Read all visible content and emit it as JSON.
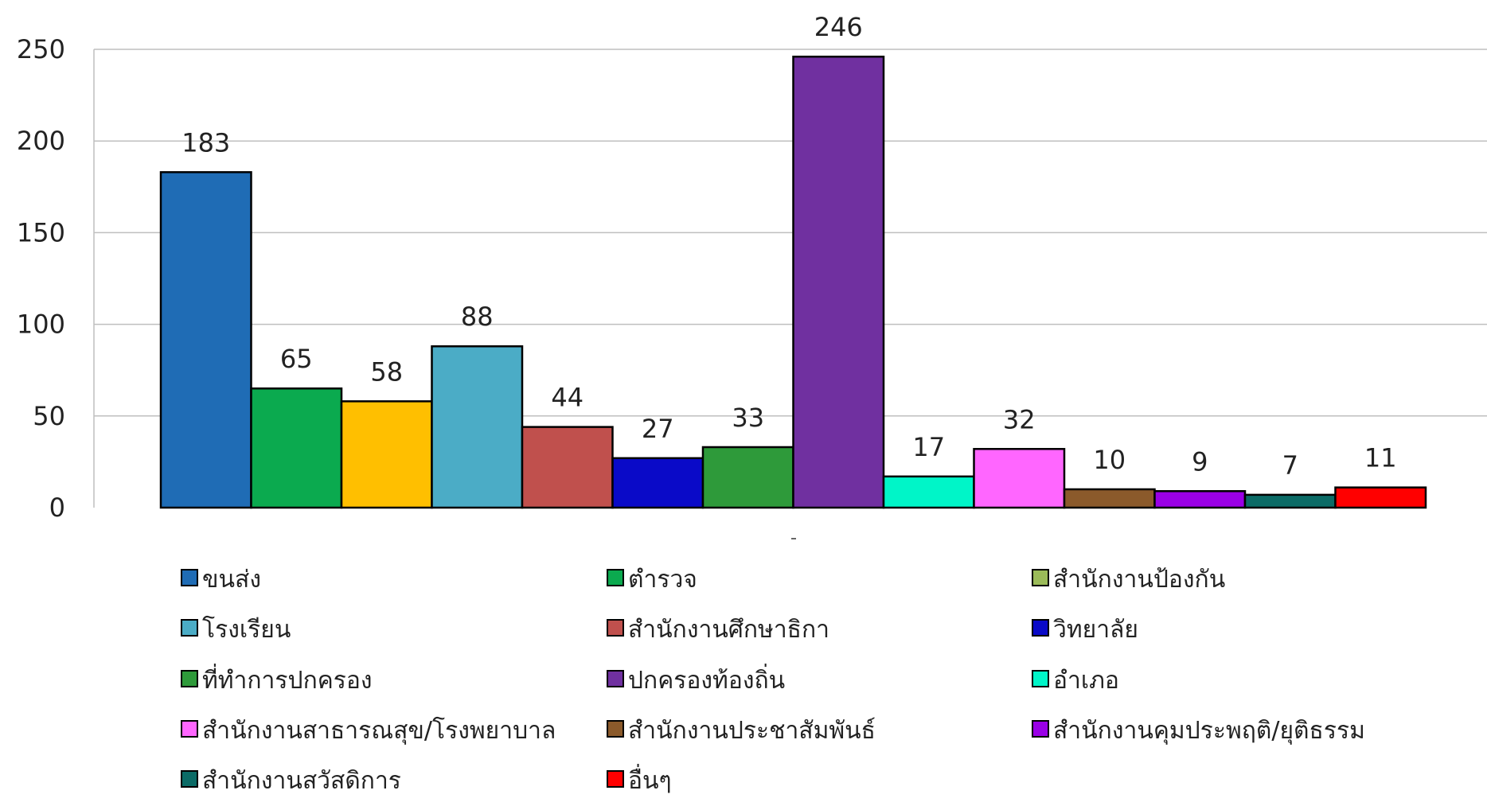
{
  "chart_data": {
    "type": "bar",
    "title": "",
    "xlabel": "",
    "ylabel": "",
    "ylim": [
      0,
      250
    ],
    "yticks": [
      0,
      50,
      100,
      150,
      200,
      250
    ],
    "grid": true,
    "legend_position": "bottom",
    "series": [
      {
        "name": "ขนส่ง",
        "value": 183,
        "color": "#1F6CB5"
      },
      {
        "name": "ตำรวจ",
        "value": 65,
        "color": "#0BAA4F"
      },
      {
        "name": "สำนักงานป้องกัน",
        "value": 58,
        "color": "#FFBF00"
      },
      {
        "name": "โรงเรียน",
        "value": 88,
        "color": "#4BACC6"
      },
      {
        "name": "สำนักงานศึกษาธิกา",
        "value": 44,
        "color": "#C0504D"
      },
      {
        "name": "วิทยาลัย",
        "value": 27,
        "color": "#0A0AC8"
      },
      {
        "name": "ที่ทำการปกครอง",
        "value": 33,
        "color": "#2E9A3A"
      },
      {
        "name": "ปกครองท้องถิ่น",
        "value": 246,
        "color": "#7030A0"
      },
      {
        "name": "อำเภอ",
        "value": 17,
        "color": "#00F5C8"
      },
      {
        "name": "สำนักงานสาธารณสุข/โรงพยาบาล",
        "value": 32,
        "color": "#FF66FF"
      },
      {
        "name": "สำนักงานประชาสัมพันธ์",
        "value": 10,
        "color": "#8B5A2B"
      },
      {
        "name": "สำนักงานคุมประพฤติ/ยุติธรรม",
        "value": 9,
        "color": "#9A00E6"
      },
      {
        "name": "สำนักงานสวัสดิการ",
        "value": 7,
        "color": "#0B6B66"
      },
      {
        "name": "อื่นๆ",
        "value": 11,
        "color": "#FF0000"
      }
    ],
    "legend_swatch_overrides": {
      "สำนักงานป้องกัน": "#9BBB59"
    }
  }
}
